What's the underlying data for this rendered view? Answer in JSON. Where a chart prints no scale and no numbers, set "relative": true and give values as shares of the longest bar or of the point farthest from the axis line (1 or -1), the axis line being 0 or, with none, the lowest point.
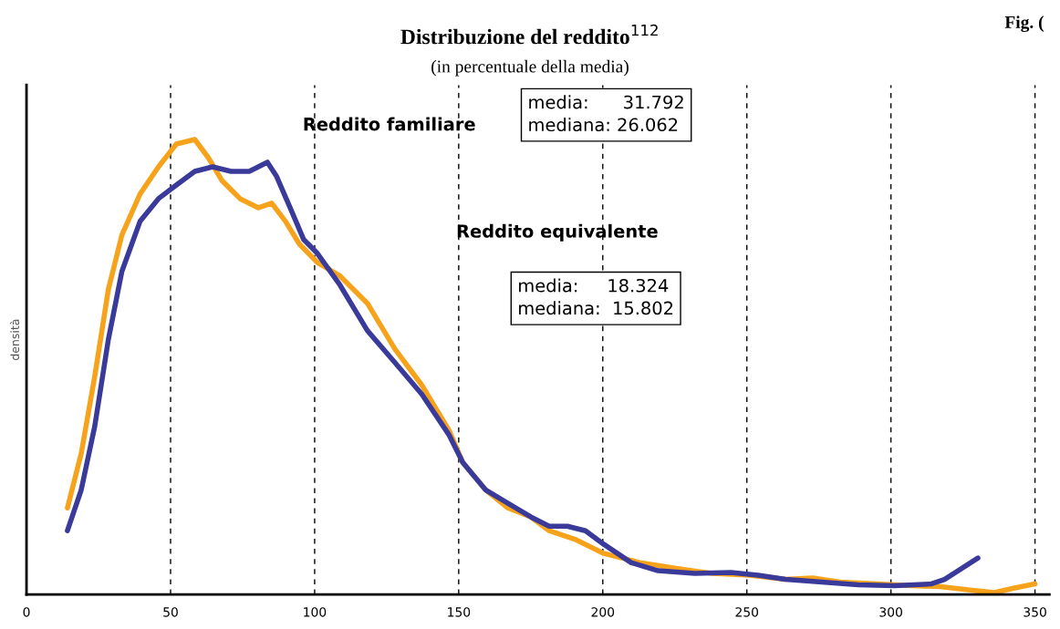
{
  "chart_data": {
    "type": "line",
    "title": "Distribuzione del reddito$^{112}$",
    "subtitle": "(in percentuale della media)",
    "ylabel": "densità",
    "relative": true,
    "xlim": [
      0,
      355
    ],
    "xticks": [
      0,
      50,
      100,
      150,
      200,
      250,
      300,
      350
    ],
    "grid": "x",
    "line_style": "solid",
    "marker": "none",
    "tick_labels": "x",
    "annotations": [
      "Reddito familiare",
      "media:      31.792\nmediana: 26.062",
      "Reddito equivalente",
      "media:     18.324\nmediana:  15.802",
      "Fig. ("
    ],
    "series": [
      {
        "color": "#f7a21b",
        "x": [
          14.2,
          19.0,
          23.7,
          28.4,
          33.1,
          39.4,
          45.8,
          52.0,
          58.4,
          63.1,
          67.8,
          74.1,
          80.5,
          85.1,
          89.9,
          94.7,
          100.9,
          108.8,
          118.3,
          127.8,
          137.2,
          146.7,
          151.4,
          159.3,
          167.1,
          175.1,
          181.4,
          190.8,
          200.4,
          212.9,
          225.5,
          238.1,
          250.8,
          263.4,
          272.8,
          282.4,
          295.0,
          307.5,
          317.1,
          329.6,
          336.0,
          342.2,
          350.0
        ],
        "values": [
          0.19,
          0.31,
          0.48,
          0.67,
          0.79,
          0.88,
          0.94,
          0.99,
          1.0,
          0.96,
          0.91,
          0.87,
          0.85,
          0.86,
          0.82,
          0.77,
          0.73,
          0.7,
          0.64,
          0.54,
          0.46,
          0.36,
          0.29,
          0.23,
          0.19,
          0.17,
          0.14,
          0.12,
          0.09,
          0.07,
          0.057,
          0.046,
          0.042,
          0.033,
          0.036,
          0.027,
          0.023,
          0.019,
          0.017,
          0.008,
          0.004,
          0.013,
          0.023
        ]
      },
      {
        "color": "#3a3a9a",
        "x": [
          14.2,
          19.0,
          23.7,
          28.4,
          33.1,
          39.4,
          45.8,
          52.0,
          58.4,
          64.6,
          71.0,
          77.3,
          83.6,
          86.7,
          91.5,
          96.2,
          100.9,
          108.8,
          118.3,
          127.8,
          137.2,
          146.7,
          151.4,
          159.3,
          167.1,
          175.1,
          181.4,
          187.7,
          194.0,
          200.4,
          209.8,
          219.2,
          231.9,
          244.5,
          253.9,
          263.4,
          276.0,
          288.6,
          301.3,
          313.9,
          318.6,
          323.3,
          330.2
        ],
        "values": [
          0.14,
          0.23,
          0.37,
          0.56,
          0.71,
          0.82,
          0.87,
          0.9,
          0.93,
          0.94,
          0.93,
          0.93,
          0.95,
          0.92,
          0.85,
          0.78,
          0.75,
          0.68,
          0.58,
          0.51,
          0.44,
          0.35,
          0.29,
          0.23,
          0.2,
          0.17,
          0.15,
          0.15,
          0.14,
          0.11,
          0.07,
          0.052,
          0.046,
          0.048,
          0.042,
          0.033,
          0.027,
          0.021,
          0.019,
          0.023,
          0.033,
          0.052,
          0.08
        ]
      }
    ]
  }
}
